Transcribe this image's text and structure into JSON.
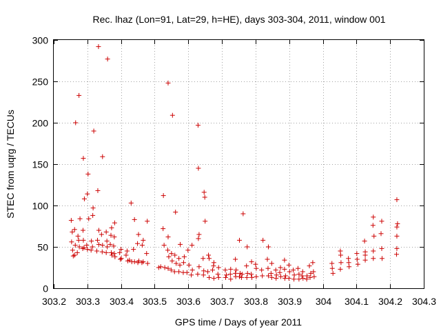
{
  "chart_data": {
    "type": "scatter",
    "title": "Rec. lhaz (Lon=91, Lat=29, h=HE), days 303-304, 2011, window 001",
    "xlabel": "GPS time / Days of year 2011",
    "ylabel": "STEC from uqrg / TECUs",
    "xlim": [
      303.2,
      304.3
    ],
    "ylim": [
      0,
      300
    ],
    "xticks": [
      "303.2",
      "303.3",
      "303.4",
      "303.5",
      "303.6",
      "303.7",
      "303.8",
      "303.9",
      "304",
      "304.1",
      "304.2",
      "304.3"
    ],
    "yticks": [
      "0",
      "50",
      "100",
      "150",
      "200",
      "250",
      "300"
    ],
    "grid": true,
    "marker": "+",
    "point_color": "#cc0000",
    "series": [
      {
        "points": [
          [
            303.252,
            82
          ],
          [
            303.255,
            68
          ],
          [
            303.253,
            56
          ],
          [
            303.256,
            46
          ],
          [
            303.258,
            39
          ],
          [
            303.265,
            200
          ],
          [
            303.262,
            71
          ],
          [
            303.264,
            52
          ],
          [
            303.262,
            40
          ],
          [
            303.275,
            233
          ],
          [
            303.278,
            84
          ],
          [
            303.272,
            63
          ],
          [
            303.274,
            58
          ],
          [
            303.276,
            50
          ],
          [
            303.27,
            43
          ],
          [
            303.288,
            157
          ],
          [
            303.291,
            108
          ],
          [
            303.287,
            70
          ],
          [
            303.288,
            58
          ],
          [
            303.29,
            49
          ],
          [
            303.286,
            48
          ],
          [
            303.302,
            138
          ],
          [
            303.3,
            114
          ],
          [
            303.304,
            84
          ],
          [
            303.298,
            52
          ],
          [
            303.3,
            47
          ],
          [
            303.319,
            190
          ],
          [
            303.317,
            97
          ],
          [
            303.316,
            88
          ],
          [
            303.312,
            57
          ],
          [
            303.315,
            50
          ],
          [
            303.311,
            46
          ],
          [
            303.333,
            292
          ],
          [
            303.331,
            118
          ],
          [
            303.334,
            70
          ],
          [
            303.33,
            58
          ],
          [
            303.334,
            53
          ],
          [
            303.328,
            45
          ],
          [
            303.345,
            159
          ],
          [
            303.342,
            65
          ],
          [
            303.345,
            52
          ],
          [
            303.344,
            44
          ],
          [
            303.36,
            277
          ],
          [
            303.356,
            68
          ],
          [
            303.358,
            57
          ],
          [
            303.359,
            50
          ],
          [
            303.356,
            43
          ],
          [
            303.372,
            73
          ],
          [
            303.37,
            64
          ],
          [
            303.368,
            53
          ],
          [
            303.371,
            43
          ],
          [
            303.373,
            40
          ],
          [
            303.381,
            79
          ],
          [
            303.38,
            62
          ],
          [
            303.378,
            51
          ],
          [
            303.38,
            42
          ],
          [
            303.382,
            38
          ],
          [
            303.4,
            47
          ],
          [
            303.396,
            43
          ],
          [
            303.401,
            36
          ],
          [
            303.398,
            35
          ],
          [
            303.418,
            45
          ],
          [
            303.415,
            40
          ],
          [
            303.42,
            33
          ],
          [
            303.43,
            103
          ],
          [
            303.425,
            34
          ],
          [
            303.432,
            32
          ],
          [
            303.44,
            83
          ],
          [
            303.437,
            47
          ],
          [
            303.44,
            32
          ],
          [
            303.452,
            65
          ],
          [
            303.449,
            54
          ],
          [
            303.453,
            33
          ],
          [
            303.45,
            31
          ],
          [
            303.466,
            58
          ],
          [
            303.463,
            52
          ],
          [
            303.466,
            32
          ],
          [
            303.462,
            31
          ],
          [
            303.478,
            81
          ],
          [
            303.476,
            42
          ],
          [
            303.479,
            30
          ],
          [
            303.512,
            25
          ],
          [
            303.518,
            26
          ],
          [
            303.526,
            112
          ],
          [
            303.525,
            72
          ],
          [
            303.528,
            52
          ],
          [
            303.53,
            25
          ],
          [
            303.54,
            248
          ],
          [
            303.54,
            62
          ],
          [
            303.539,
            46
          ],
          [
            303.542,
            38
          ],
          [
            303.54,
            24
          ],
          [
            303.553,
            209
          ],
          [
            303.55,
            42
          ],
          [
            303.552,
            33
          ],
          [
            303.549,
            22
          ],
          [
            303.562,
            92
          ],
          [
            303.56,
            40
          ],
          [
            303.564,
            30
          ],
          [
            303.559,
            20
          ],
          [
            303.576,
            53
          ],
          [
            303.572,
            36
          ],
          [
            303.575,
            28
          ],
          [
            303.572,
            20
          ],
          [
            303.588,
            38
          ],
          [
            303.586,
            31
          ],
          [
            303.585,
            19
          ],
          [
            303.599,
            46
          ],
          [
            303.602,
            28
          ],
          [
            303.596,
            19
          ],
          [
            303.611,
            52
          ],
          [
            303.612,
            22
          ],
          [
            303.609,
            16
          ],
          [
            303.629,
            197
          ],
          [
            303.63,
            145
          ],
          [
            303.632,
            65
          ],
          [
            303.63,
            60
          ],
          [
            303.632,
            26
          ],
          [
            303.628,
            17
          ],
          [
            303.647,
            116
          ],
          [
            303.649,
            110
          ],
          [
            303.65,
            81
          ],
          [
            303.644,
            36
          ],
          [
            303.646,
            21
          ],
          [
            303.645,
            16
          ],
          [
            303.66,
            40
          ],
          [
            303.662,
            36
          ],
          [
            303.658,
            20
          ],
          [
            303.662,
            13
          ],
          [
            303.676,
            31
          ],
          [
            303.675,
            27
          ],
          [
            303.672,
            22
          ],
          [
            303.676,
            12
          ],
          [
            303.69,
            25
          ],
          [
            303.688,
            17
          ],
          [
            303.69,
            13
          ],
          [
            303.71,
            22
          ],
          [
            303.713,
            16
          ],
          [
            303.711,
            13
          ],
          [
            303.726,
            23
          ],
          [
            303.725,
            17
          ],
          [
            303.726,
            11
          ],
          [
            303.74,
            35
          ],
          [
            303.742,
            22
          ],
          [
            303.74,
            18
          ],
          [
            303.741,
            14
          ],
          [
            303.752,
            58
          ],
          [
            303.754,
            18
          ],
          [
            303.752,
            14
          ],
          [
            303.763,
            90
          ],
          [
            303.76,
            17
          ],
          [
            303.758,
            13
          ],
          [
            303.775,
            50
          ],
          [
            303.773,
            27
          ],
          [
            303.776,
            18
          ],
          [
            303.774,
            13
          ],
          [
            303.788,
            32
          ],
          [
            303.787,
            17
          ],
          [
            303.789,
            13
          ],
          [
            303.8,
            29
          ],
          [
            303.802,
            24
          ],
          [
            303.802,
            14
          ],
          [
            303.822,
            58
          ],
          [
            303.818,
            22
          ],
          [
            303.82,
            15
          ],
          [
            303.838,
            50
          ],
          [
            303.835,
            35
          ],
          [
            303.837,
            24
          ],
          [
            303.838,
            15
          ],
          [
            303.848,
            30
          ],
          [
            303.846,
            18
          ],
          [
            303.848,
            13
          ],
          [
            303.86,
            22
          ],
          [
            303.862,
            16
          ],
          [
            303.861,
            12
          ],
          [
            303.874,
            25
          ],
          [
            303.872,
            19
          ],
          [
            303.875,
            14
          ],
          [
            303.886,
            34
          ],
          [
            303.886,
            23
          ],
          [
            303.889,
            15
          ],
          [
            303.887,
            12
          ],
          [
            303.899,
            28
          ],
          [
            303.901,
            20
          ],
          [
            303.899,
            12
          ],
          [
            303.912,
            22
          ],
          [
            303.915,
            16
          ],
          [
            303.914,
            11
          ],
          [
            303.926,
            24
          ],
          [
            303.929,
            17
          ],
          [
            303.929,
            11
          ],
          [
            303.94,
            20
          ],
          [
            303.938,
            15
          ],
          [
            303.941,
            12
          ],
          [
            303.953,
            15
          ],
          [
            303.952,
            11
          ],
          [
            303.96,
            27
          ],
          [
            303.964,
            18
          ],
          [
            303.962,
            13
          ],
          [
            303.97,
            31
          ],
          [
            303.972,
            20
          ],
          [
            303.974,
            14
          ],
          [
            304.027,
            30
          ],
          [
            304.028,
            24
          ],
          [
            304.03,
            18
          ],
          [
            304.052,
            45
          ],
          [
            304.053,
            40
          ],
          [
            304.054,
            31
          ],
          [
            304.052,
            23
          ],
          [
            304.076,
            36
          ],
          [
            304.077,
            31
          ],
          [
            304.078,
            26
          ],
          [
            304.101,
            42
          ],
          [
            304.102,
            35
          ],
          [
            304.104,
            29
          ],
          [
            304.124,
            57
          ],
          [
            304.126,
            44
          ],
          [
            304.126,
            40
          ],
          [
            304.126,
            34
          ],
          [
            304.15,
            86
          ],
          [
            304.149,
            76
          ],
          [
            304.152,
            63
          ],
          [
            304.15,
            45
          ],
          [
            304.15,
            36
          ],
          [
            304.175,
            81
          ],
          [
            304.173,
            66
          ],
          [
            304.175,
            48
          ],
          [
            304.176,
            36
          ],
          [
            304.22,
            107
          ],
          [
            304.222,
            78
          ],
          [
            304.22,
            74
          ],
          [
            304.22,
            63
          ],
          [
            304.22,
            48
          ],
          [
            304.219,
            41
          ]
        ]
      }
    ]
  }
}
